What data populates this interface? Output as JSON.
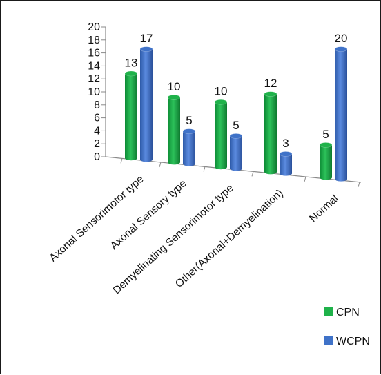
{
  "chart_data": {
    "type": "bar",
    "title": "",
    "xlabel": "",
    "ylabel": "",
    "ylim": [
      0,
      20
    ],
    "yticks": [
      0,
      2,
      4,
      6,
      8,
      10,
      12,
      14,
      16,
      18,
      20
    ],
    "categories": [
      "Axonal Sensorimotor type",
      "Axonal Sensory type",
      "Demyelinating Sensorimotor type",
      "Other(Axonal+Demyelination)",
      "Normal"
    ],
    "series": [
      {
        "name": "CPN",
        "values": [
          13,
          10,
          10,
          12,
          5
        ],
        "color": "#1fb24a"
      },
      {
        "name": "WCPN",
        "values": [
          17,
          5,
          5,
          3,
          20
        ],
        "color": "#3f72c8"
      }
    ],
    "legend_position": "bottom-right",
    "grid": false,
    "style": "3d-perspective"
  }
}
